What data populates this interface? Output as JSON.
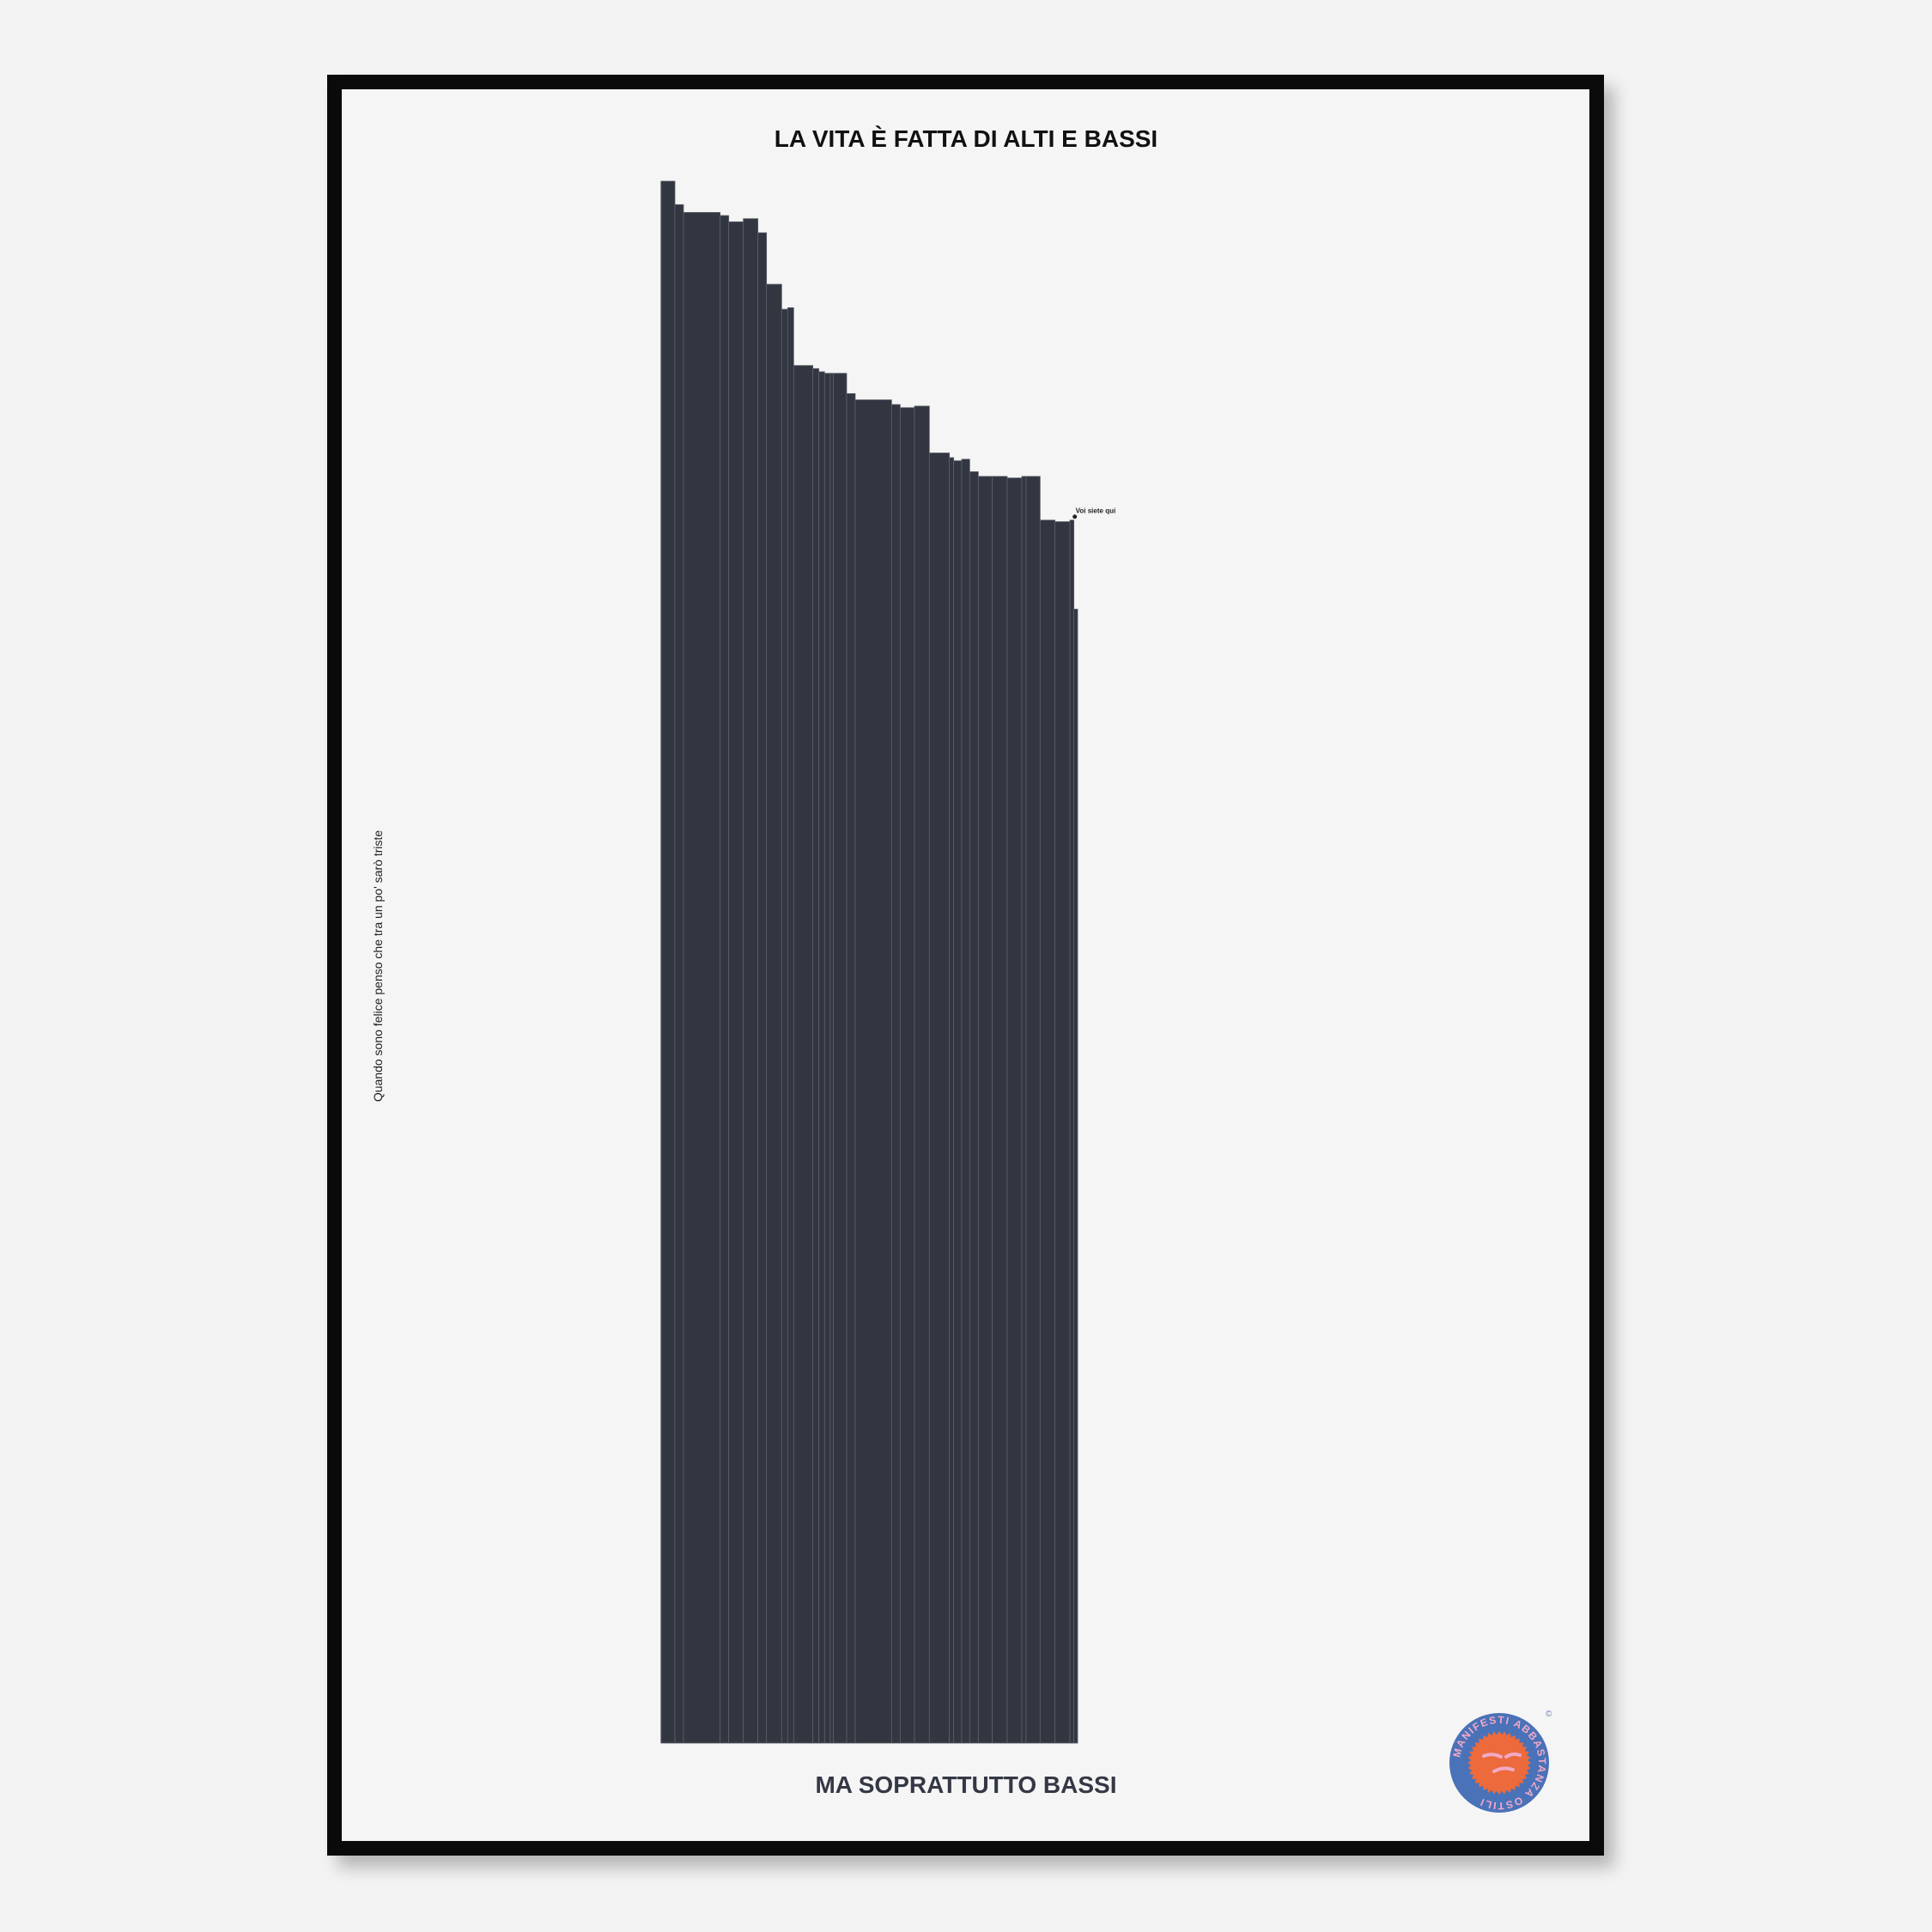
{
  "poster": {
    "title": "LA VITA È FATTA DI ALTI E BASSI",
    "subtitle": "MA SOPRATTUTTO BASSI",
    "side_text": "Quando sono felice penso che tra un po' sarò triste",
    "logo_text": "MANIFESTI ABBASTANZA OSTILI"
  },
  "chart_data": {
    "type": "bar",
    "title": "LA VITA È FATTA DI ALTI E BASSI",
    "xlabel": "MA SOPRATTUTTO BASSI",
    "ylabel": "Quando sono felice penso che tra un po' sarò triste",
    "grid": false,
    "bar_color": "#323640",
    "annotation": "Voi siete qui",
    "ylim": [
      0,
      100
    ],
    "widths": [
      48,
      30,
      128,
      30,
      51,
      51,
      30,
      53,
      21,
      21,
      67,
      21,
      20,
      20,
      11,
      46,
      30,
      127,
      30,
      50,
      52,
      70,
      15,
      28,
      28,
      30,
      49,
      52,
      51,
      15,
      49,
      52,
      52,
      14,
      13
    ],
    "values": [
      100,
      98.5,
      98.0,
      97.8,
      97.4,
      97.6,
      96.7,
      93.4,
      91.8,
      91.9,
      88.2,
      88.0,
      87.8,
      87.7,
      87.7,
      87.7,
      86.4,
      86.0,
      85.7,
      85.5,
      85.6,
      82.6,
      82.3,
      82.1,
      82.2,
      81.4,
      81.1,
      81.1,
      81.0,
      81.1,
      81.1,
      78.3,
      78.2,
      78.3,
      72.6
    ]
  }
}
